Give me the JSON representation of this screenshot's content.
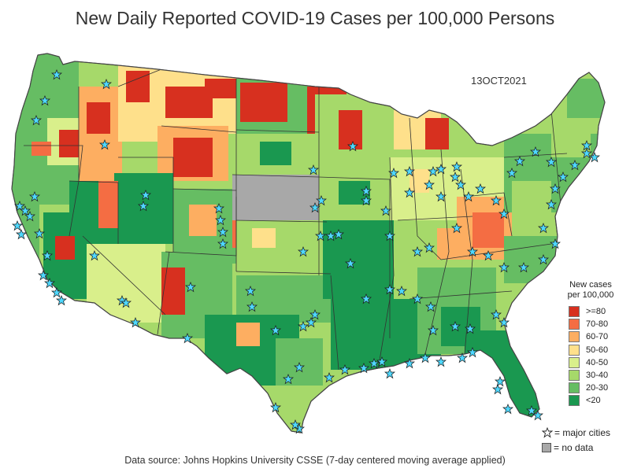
{
  "title": "New Daily Reported COVID-19 Cases per 100,000 Persons",
  "date_label": "13OCT2021",
  "legend": {
    "title_line1": "New cases",
    "title_line2": "per 100,000",
    "items": [
      {
        "label": ">=80",
        "color": "#d7301f"
      },
      {
        "label": "70-80",
        "color": "#f46d43"
      },
      {
        "label": "60-70",
        "color": "#fdae61"
      },
      {
        "label": "50-60",
        "color": "#fee08b"
      },
      {
        "label": "40-50",
        "color": "#d9ef8b"
      },
      {
        "label": "30-40",
        "color": "#a6d96a"
      },
      {
        "label": "20-30",
        "color": "#66bd63"
      },
      {
        "label": "<20",
        "color": "#1a9850"
      }
    ],
    "cities_label": "= major cities",
    "nodata_label": "= no data",
    "nodata_color": "#a8a8a8",
    "city_color": "#4fd8ff"
  },
  "source": "Data source: Johns Hopkins University CSSE (7-day centered moving average applied)"
}
